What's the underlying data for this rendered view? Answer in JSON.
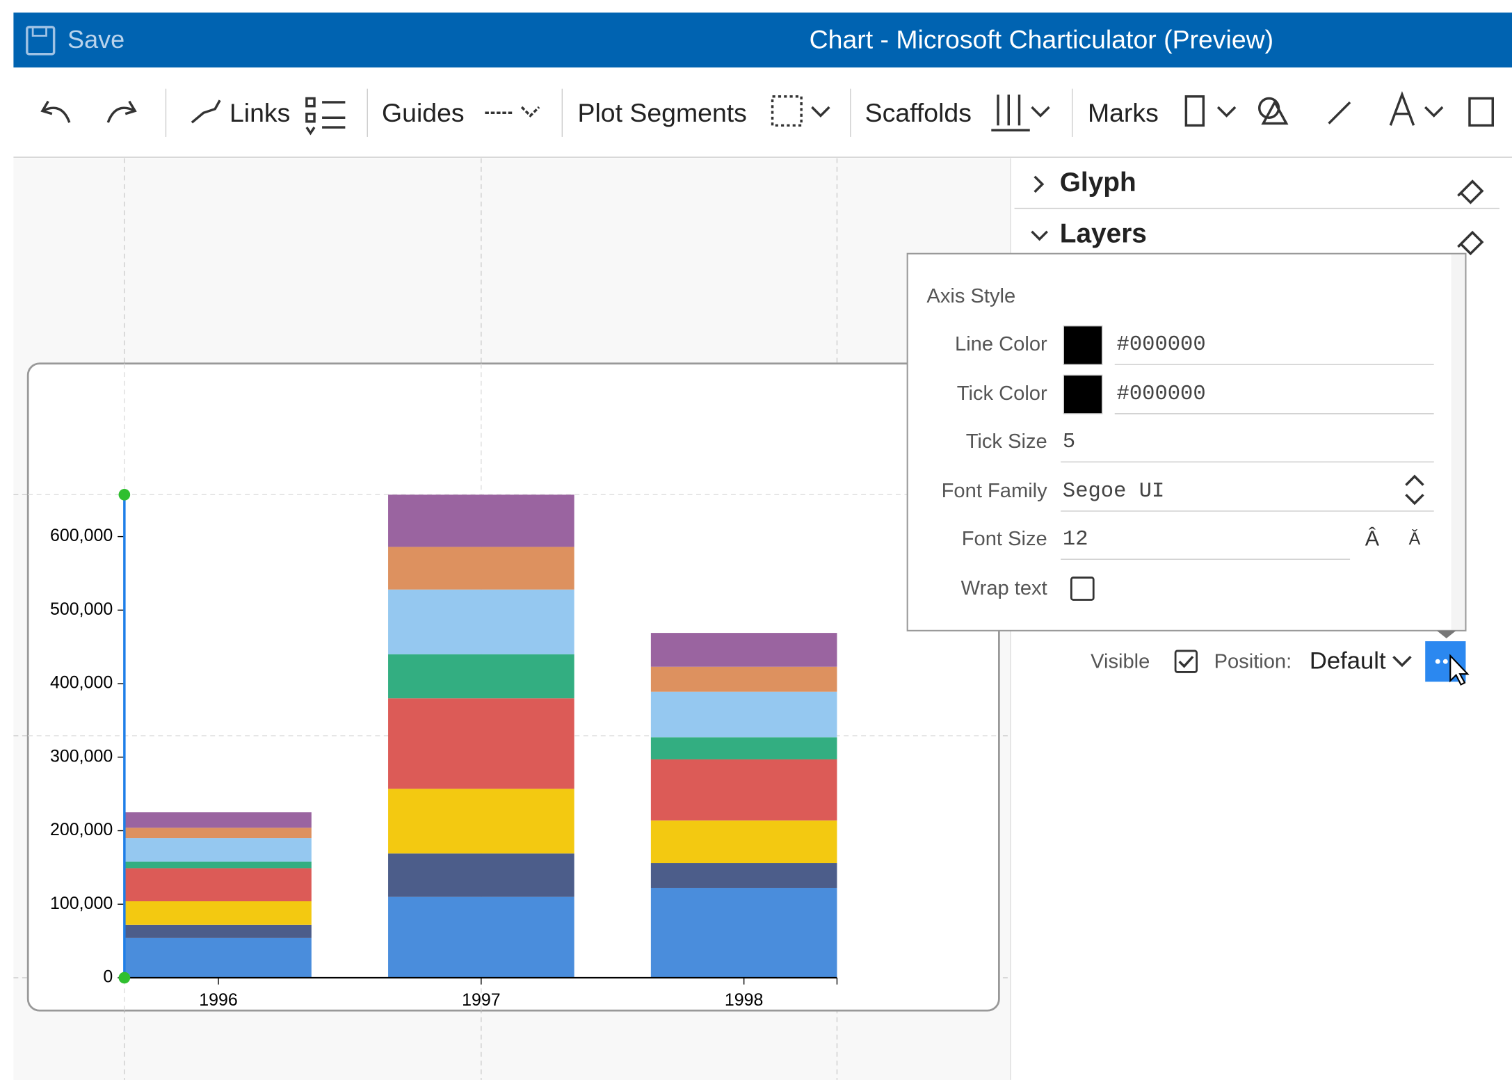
{
  "window": {
    "save": "Save",
    "title": "Chart - Microsoft Charticulator (Preview)"
  },
  "toolbar": {
    "links": "Links",
    "guides": "Guides",
    "plot_segments": "Plot Segments",
    "scaffolds": "Scaffolds",
    "marks": "Marks"
  },
  "panel": {
    "glyph": "Glyph",
    "layers": "Layers",
    "visible": "Visible",
    "position_label": "Position:",
    "position_value": "Default"
  },
  "popup": {
    "title": "Axis Style",
    "fields": [
      {
        "label": "Line Color",
        "value": "#000000"
      },
      {
        "label": "Tick Color",
        "value": "#000000"
      },
      {
        "label": "Tick Size",
        "value": 5
      },
      {
        "label": "Font Family",
        "value": "Segoe UI"
      },
      {
        "label": "Font Size",
        "value": 12
      },
      {
        "label": "Wrap text"
      }
    ]
  },
  "chart": {
    "type": "stacked_bar",
    "categories": [
      "1996",
      "1997",
      "1998"
    ],
    "series": [
      {
        "color": "#4a8ddc",
        "values": [
          54000,
          110000,
          122000
        ]
      },
      {
        "color": "#4c5d8a",
        "values": [
          18000,
          59000,
          34000
        ]
      },
      {
        "color": "#f3c911",
        "values": [
          32000,
          88000,
          58000
        ]
      },
      {
        "color": "#dc5b57",
        "values": [
          45000,
          123000,
          83000
        ]
      },
      {
        "color": "#33ae81",
        "values": [
          9000,
          60000,
          30000
        ]
      },
      {
        "color": "#95c8f0",
        "values": [
          32000,
          88000,
          62000
        ]
      },
      {
        "color": "#dd915f",
        "values": [
          14000,
          58000,
          34000
        ]
      },
      {
        "color": "#9a64a0",
        "values": [
          21000,
          71000,
          46000
        ]
      }
    ],
    "ylim": [
      0,
      657000
    ],
    "yticks": [
      0,
      {
        "value": 100000,
        "label": "100,000"
      },
      {
        "value": 200000,
        "label": "200,000"
      },
      {
        "value": 300000,
        "label": "300,000"
      },
      {
        "value": 400000,
        "label": "400,000"
      },
      {
        "value": 500000,
        "label": "500,000"
      },
      {
        "value": 600000,
        "label": "600,000"
      }
    ]
  }
}
